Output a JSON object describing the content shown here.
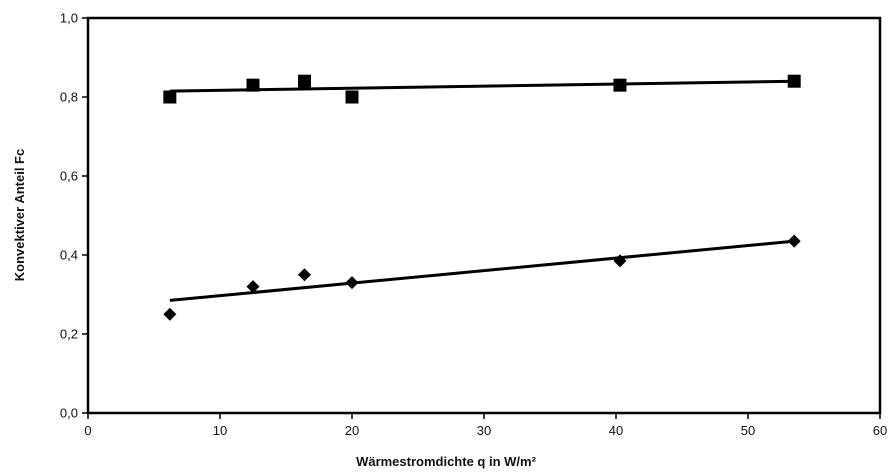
{
  "chart_data": {
    "type": "scatter",
    "title": "",
    "xlabel": "Wärmestromdichte q in W/m²",
    "ylabel": "Konvektiver Anteil Fc",
    "xlim": [
      0,
      60
    ],
    "ylim": [
      0.0,
      1.0
    ],
    "xticks": [
      "0",
      "10",
      "20",
      "30",
      "40",
      "50",
      "60"
    ],
    "yticks": [
      "0,0",
      "0,2",
      "0,4",
      "0,6",
      "0,8",
      "1,0"
    ],
    "grid": false,
    "legend": "none",
    "series": [
      {
        "marker": "square",
        "color": "#000000",
        "points": [
          [
            6.2,
            0.8
          ],
          [
            12.5,
            0.83
          ],
          [
            16.4,
            0.84
          ],
          [
            20.0,
            0.8
          ],
          [
            40.3,
            0.83
          ],
          [
            53.5,
            0.84
          ]
        ],
        "trendline": [
          [
            6.2,
            0.815
          ],
          [
            53.5,
            0.84
          ]
        ]
      },
      {
        "marker": "diamond",
        "color": "#000000",
        "points": [
          [
            6.2,
            0.25
          ],
          [
            12.5,
            0.32
          ],
          [
            16.4,
            0.35
          ],
          [
            20.0,
            0.33
          ],
          [
            40.3,
            0.385
          ],
          [
            53.5,
            0.435
          ]
        ],
        "trendline": [
          [
            6.2,
            0.285
          ],
          [
            53.5,
            0.435
          ]
        ]
      }
    ]
  }
}
